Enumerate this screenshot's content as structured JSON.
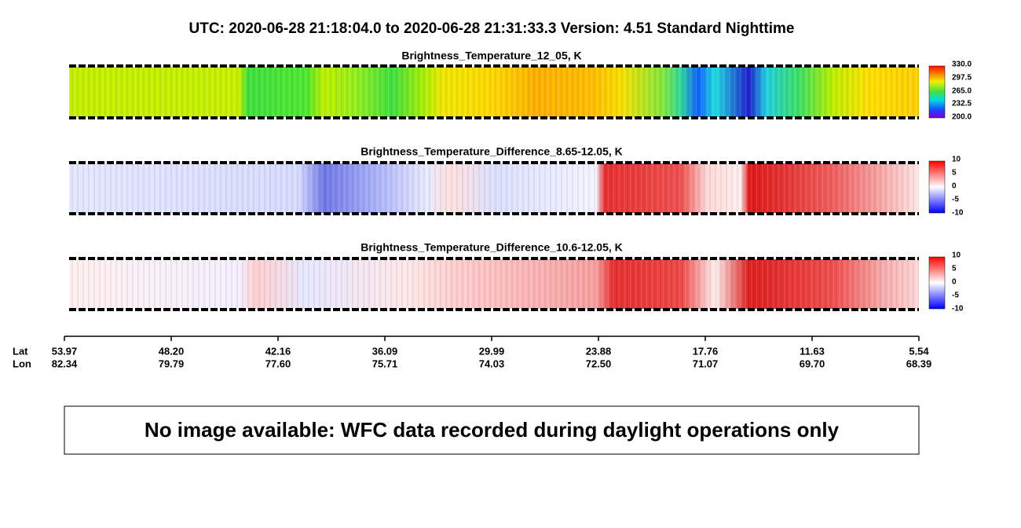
{
  "header": {
    "title": "UTC:  2020-06-28   21:18:04.0  to  2020-06-28   21:31:33.3    Version: 4.51  Standard Nighttime"
  },
  "panels": [
    {
      "title": "Brightness_Temperature_12_05, K",
      "colorbar_ticks": [
        "330.0",
        "297.5",
        "265.0",
        "232.5",
        "200.0"
      ]
    },
    {
      "title": "Brightness_Temperature_Difference_8.65-12.05, K",
      "colorbar_ticks": [
        "10",
        "5",
        "0",
        "-5",
        "-10"
      ]
    },
    {
      "title": "Brightness_Temperature_Difference_10.6-12.05, K",
      "colorbar_ticks": [
        "10",
        "5",
        "0",
        "-5",
        "-10"
      ]
    }
  ],
  "axis": {
    "lat_label": "Lat",
    "lon_label": "Lon",
    "lat": [
      "53.97",
      "48.20",
      "42.16",
      "36.09",
      "29.99",
      "23.88",
      "17.76",
      "11.63",
      "5.54"
    ],
    "lon": [
      "82.34",
      "79.79",
      "77.60",
      "75.71",
      "74.03",
      "72.50",
      "71.07",
      "69.70",
      "68.39"
    ]
  },
  "notice": "No image available: WFC data recorded during daylight operations only"
}
